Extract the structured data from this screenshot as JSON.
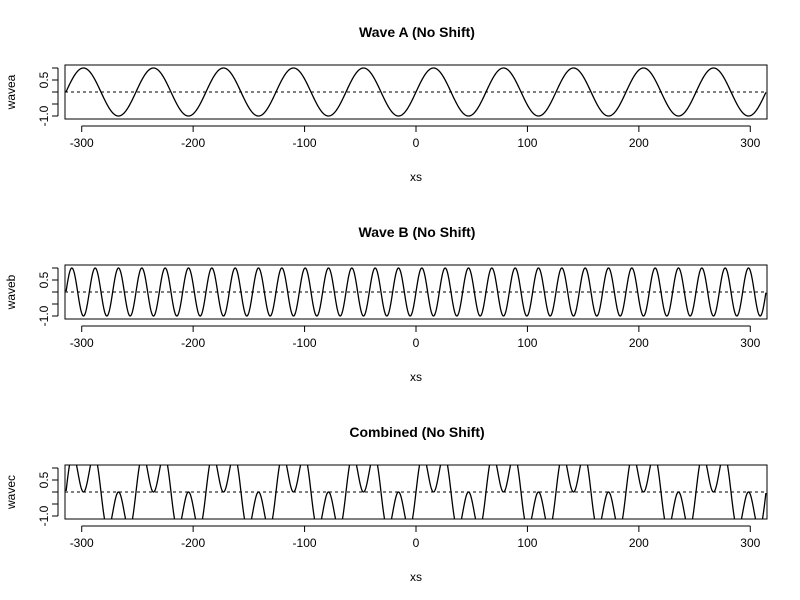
{
  "chart_data": [
    {
      "type": "line",
      "title": "Wave A (No Shift)",
      "xlabel": "xs",
      "ylabel": "wavea",
      "xlim": [
        -315,
        315
      ],
      "ylim": [
        -1,
        1
      ],
      "x_ticks": [
        -300,
        -200,
        -100,
        0,
        100,
        200,
        300
      ],
      "y_ticks": [
        -1.0,
        0.5
      ],
      "y_tick_labels": [
        "-1.0",
        "0.5"
      ],
      "reference_line": {
        "y": 0,
        "style": "dotted"
      },
      "series": [
        {
          "function": "sine",
          "amplitude": 1,
          "period": 62.83,
          "phase": 0,
          "x_range": [
            -314,
            314
          ]
        }
      ]
    },
    {
      "type": "line",
      "title": "Wave B (No Shift)",
      "xlabel": "xs",
      "ylabel": "waveb",
      "xlim": [
        -315,
        315
      ],
      "ylim": [
        -1,
        1
      ],
      "x_ticks": [
        -300,
        -200,
        -100,
        0,
        100,
        200,
        300
      ],
      "y_ticks": [
        -1.0,
        0.5
      ],
      "y_tick_labels": [
        "-1.0",
        "0.5"
      ],
      "reference_line": {
        "y": 0,
        "style": "dotted"
      },
      "series": [
        {
          "function": "sine",
          "amplitude": 1,
          "period": 20.94,
          "phase": 0,
          "x_range": [
            -314,
            314
          ]
        }
      ]
    },
    {
      "type": "line",
      "title": "Combined (No Shift)",
      "xlabel": "xs",
      "ylabel": "wavec",
      "xlim": [
        -315,
        315
      ],
      "ylim": [
        -1,
        1
      ],
      "x_ticks": [
        -300,
        -200,
        -100,
        0,
        100,
        200,
        300
      ],
      "y_ticks": [
        -1.0,
        0.5
      ],
      "y_tick_labels": [
        "-1.0",
        "0.5"
      ],
      "reference_line": {
        "y": 0,
        "style": "dotted"
      },
      "series": [
        {
          "function": "sum_of_sines",
          "components": [
            {
              "amplitude": 1,
              "period": 62.83,
              "phase": 0
            },
            {
              "amplitude": 1,
              "period": 20.94,
              "phase": 0
            }
          ],
          "x_range": [
            -314,
            314
          ]
        }
      ]
    }
  ]
}
